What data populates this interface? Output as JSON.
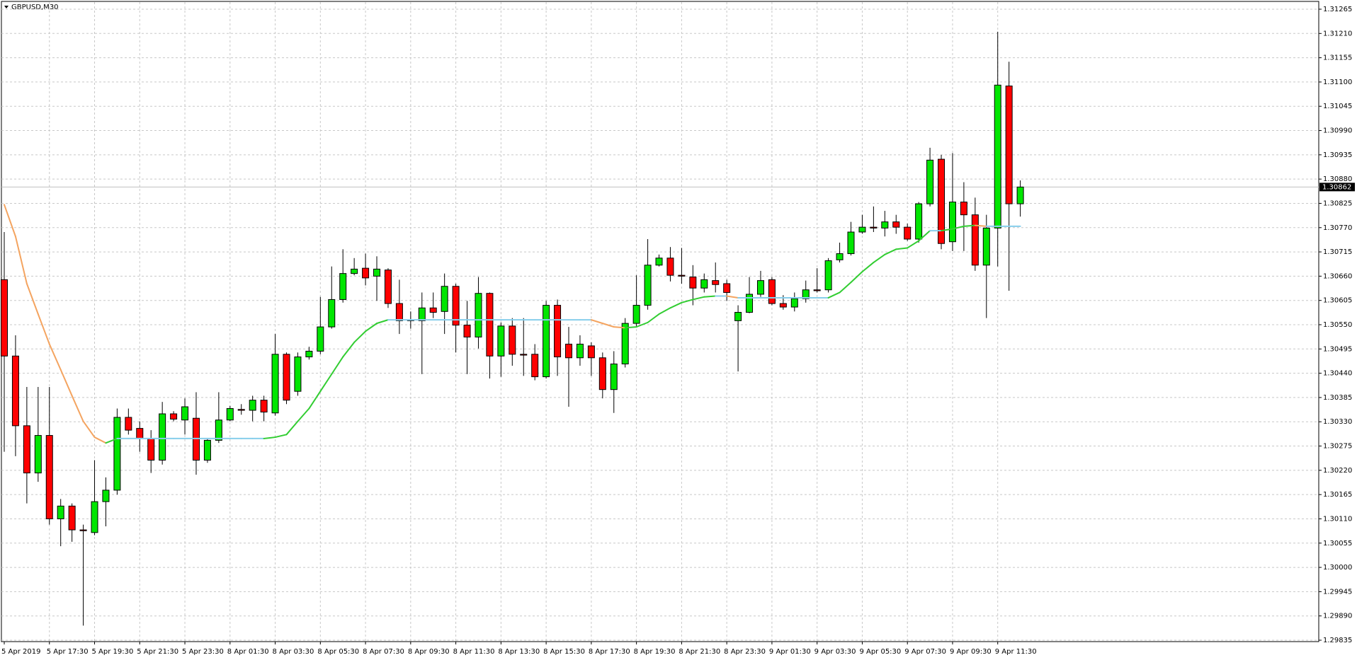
{
  "chart_data": {
    "type": "candlestick",
    "title": "GBPUSD,M30",
    "categories": [
      "5 Apr 2019",
      null,
      null,
      null,
      "5 Apr 17:30",
      null,
      null,
      null,
      "5 Apr 19:30",
      null,
      null,
      null,
      "5 Apr 21:30",
      null,
      null,
      null,
      "5 Apr 23:30",
      null,
      null,
      null,
      "8 Apr 01:30",
      null,
      null,
      null,
      "8 Apr 03:30",
      null,
      null,
      null,
      "8 Apr 05:30",
      null,
      null,
      null,
      "8 Apr 07:30",
      null,
      null,
      null,
      "8 Apr 09:30",
      null,
      null,
      null,
      "8 Apr 11:30",
      null,
      null,
      null,
      "8 Apr 13:30",
      null,
      null,
      null,
      "8 Apr 15:30",
      null,
      null,
      null,
      "8 Apr 17:30",
      null,
      null,
      null,
      "8 Apr 19:30",
      null,
      null,
      null,
      "8 Apr 21:30",
      null,
      null,
      null,
      "8 Apr 23:30",
      null,
      null,
      null,
      "9 Apr 01:30",
      null,
      null,
      null,
      "9 Apr 03:30",
      null,
      null,
      null,
      "9 Apr 05:30",
      null,
      null,
      null,
      "9 Apr 07:30",
      null,
      null,
      null,
      "9 Apr 09:30",
      null,
      null,
      null,
      "9 Apr 11:30",
      null,
      null
    ],
    "open": [
      1.30652,
      1.30479,
      1.30321,
      1.30214,
      1.30299,
      1.3011,
      1.30139,
      1.30085,
      1.30079,
      1.30149,
      1.30175,
      1.3034,
      1.30315,
      1.30292,
      1.30243,
      1.30348,
      1.30334,
      1.30338,
      1.30243,
      1.30288,
      1.30334,
      1.30358,
      1.30356,
      1.30379,
      1.3035,
      1.30483,
      1.30399,
      1.30477,
      1.3049,
      1.30545,
      1.30607,
      1.30666,
      1.30678,
      1.3066,
      1.30674,
      1.30598,
      1.30561,
      1.30559,
      1.30588,
      1.3058,
      1.30637,
      1.30549,
      1.30522,
      1.30621,
      1.30479,
      1.30547,
      1.30483,
      1.30483,
      1.30432,
      1.30594,
      1.30506,
      1.30475,
      1.30502,
      1.30475,
      1.30403,
      1.30461,
      1.30553,
      1.30594,
      1.30685,
      1.30701,
      1.30662,
      1.30658,
      1.30633,
      1.3065,
      1.30643,
      1.30559,
      1.30578,
      1.30619,
      1.30652,
      1.30598,
      1.3059,
      1.30609,
      1.30629,
      1.30629,
      1.30697,
      1.30711,
      1.3076,
      1.30771,
      1.30769,
      1.30783,
      1.30771,
      1.30744,
      1.30824,
      1.30925,
      1.30738,
      1.30828,
      1.30799,
      1.30685,
      1.30769,
      1.31091,
      1.30824
    ],
    "high": [
      1.3076,
      1.30526,
      1.30409,
      1.30409,
      1.30409,
      1.30155,
      1.30145,
      1.30097,
      1.30243,
      1.30204,
      1.3036,
      1.3036,
      1.30331,
      1.30311,
      1.30375,
      1.30354,
      1.30383,
      1.30397,
      1.30292,
      1.30397,
      1.30366,
      1.3037,
      1.30389,
      1.30389,
      1.30529,
      1.30487,
      1.30487,
      1.305,
      1.30613,
      1.30682,
      1.30721,
      1.30701,
      1.30711,
      1.30705,
      1.30678,
      1.30652,
      1.3058,
      1.30623,
      1.30623,
      1.30666,
      1.30643,
      1.30604,
      1.30658,
      1.30623,
      1.30555,
      1.30565,
      1.30565,
      1.30506,
      1.30604,
      1.30607,
      1.30545,
      1.30526,
      1.3051,
      1.30487,
      1.3049,
      1.30565,
      1.30662,
      1.30744,
      1.30709,
      1.30726,
      1.30724,
      1.30685,
      1.30666,
      1.30691,
      1.30652,
      1.30594,
      1.30658,
      1.30672,
      1.30658,
      1.30617,
      1.30623,
      1.3065,
      1.30678,
      1.30701,
      1.30736,
      1.30783,
      1.30799,
      1.30818,
      1.30808,
      1.30799,
      1.30779,
      1.30828,
      1.30951,
      1.30935,
      1.30939,
      1.30873,
      1.30838,
      1.30799,
      1.31214,
      1.31146,
      1.30877
    ],
    "low": [
      1.30262,
      1.30252,
      1.30145,
      1.30194,
      1.30097,
      1.30048,
      1.30058,
      1.29868,
      1.30073,
      1.30093,
      1.30165,
      1.30301,
      1.30262,
      1.30214,
      1.30233,
      1.30331,
      1.30301,
      1.3021,
      1.30237,
      1.30282,
      1.30331,
      1.30346,
      1.30331,
      1.30331,
      1.30344,
      1.3037,
      1.30389,
      1.30471,
      1.30483,
      1.30541,
      1.306,
      1.30662,
      1.30639,
      1.30604,
      1.30588,
      1.30529,
      1.30541,
      1.30438,
      1.30565,
      1.30529,
      1.30487,
      1.30438,
      1.30496,
      1.30428,
      1.30432,
      1.30457,
      1.30434,
      1.30424,
      1.30428,
      1.30434,
      1.30364,
      1.30457,
      1.30434,
      1.30383,
      1.3035,
      1.30453,
      1.30545,
      1.30584,
      1.30682,
      1.30648,
      1.30643,
      1.30594,
      1.30623,
      1.30623,
      1.30604,
      1.30444,
      1.30576,
      1.30613,
      1.30594,
      1.30584,
      1.3058,
      1.306,
      1.30623,
      1.30623,
      1.30691,
      1.30707,
      1.30756,
      1.3076,
      1.3075,
      1.30756,
      1.3074,
      1.30736,
      1.30818,
      1.30721,
      1.30717,
      1.30717,
      1.30672,
      1.30565,
      1.30682,
      1.30627,
      1.30795
    ],
    "close": [
      1.30479,
      1.30321,
      1.30214,
      1.30299,
      1.3011,
      1.30139,
      1.30085,
      1.30083,
      1.30149,
      1.30175,
      1.3034,
      1.30311,
      1.30292,
      1.30243,
      1.30348,
      1.30336,
      1.30364,
      1.30243,
      1.30288,
      1.30334,
      1.3036,
      1.30356,
      1.30379,
      1.30352,
      1.30483,
      1.30379,
      1.30477,
      1.3049,
      1.30545,
      1.30607,
      1.30666,
      1.30676,
      1.30656,
      1.30676,
      1.30598,
      1.30559,
      1.30559,
      1.30588,
      1.30578,
      1.30637,
      1.30549,
      1.30522,
      1.30621,
      1.30479,
      1.30547,
      1.30483,
      1.30481,
      1.30432,
      1.30594,
      1.30477,
      1.30475,
      1.30506,
      1.30475,
      1.30403,
      1.30461,
      1.30553,
      1.30594,
      1.30685,
      1.30701,
      1.30662,
      1.3066,
      1.30633,
      1.30652,
      1.30641,
      1.30623,
      1.30578,
      1.30619,
      1.3065,
      1.30598,
      1.3059,
      1.30609,
      1.30629,
      1.30627,
      1.30695,
      1.30711,
      1.3076,
      1.30771,
      1.30769,
      1.30783,
      1.30771,
      1.30744,
      1.30824,
      1.30923,
      1.30734,
      1.30828,
      1.30799,
      1.30685,
      1.30769,
      1.31093,
      1.30824,
      1.30862
    ],
    "moving_average": [
      1.30822,
      1.3075,
      1.30643,
      1.30574,
      1.30506,
      1.30448,
      1.30389,
      1.30331,
      1.30295,
      1.30282,
      1.30292,
      1.30292,
      1.30292,
      1.30292,
      1.30292,
      1.30292,
      1.30292,
      1.30292,
      1.30292,
      1.30292,
      1.30292,
      1.30292,
      1.30292,
      1.30292,
      1.30295,
      1.30301,
      1.30331,
      1.3036,
      1.30399,
      1.30438,
      1.30477,
      1.3051,
      1.30535,
      1.30553,
      1.30561,
      1.30561,
      1.30561,
      1.30561,
      1.30561,
      1.30561,
      1.30561,
      1.30561,
      1.30561,
      1.30561,
      1.30561,
      1.30561,
      1.30561,
      1.30561,
      1.30561,
      1.30561,
      1.30561,
      1.30561,
      1.30561,
      1.30553,
      1.30545,
      1.30543,
      1.30545,
      1.30555,
      1.30574,
      1.30588,
      1.306,
      1.30607,
      1.30613,
      1.30615,
      1.30615,
      1.30611,
      1.30611,
      1.30611,
      1.30611,
      1.30611,
      1.30611,
      1.30611,
      1.30611,
      1.30611,
      1.30623,
      1.30646,
      1.3067,
      1.30691,
      1.30709,
      1.30721,
      1.30724,
      1.3074,
      1.30763,
      1.30763,
      1.30767,
      1.30773,
      1.30775,
      1.30773,
      1.30773,
      1.30773,
      1.30773
    ],
    "colors": {
      "up": "#00e600",
      "down": "#ff0000",
      "wick": "#000000",
      "ma_up": "#32cd32",
      "ma_down": "#f4a460",
      "ma_flat": "#87ceeb"
    },
    "current_price": 1.30862,
    "ylim": [
      1.29835,
      1.31265
    ],
    "yticks": [
      1.29835,
      {
        "value": 1.2989,
        "label": "1.29890"
      },
      1.29945,
      {
        "value": 1.3,
        "label": "1.30000"
      },
      1.30055,
      {
        "value": 1.3011,
        "label": "1.30110"
      },
      1.30165,
      {
        "value": 1.3022,
        "label": "1.30220"
      },
      1.30275,
      {
        "value": 1.3033,
        "label": "1.30330"
      },
      1.30385,
      {
        "value": 1.3044,
        "label": "1.30440"
      },
      1.30495,
      {
        "value": 1.3055,
        "label": "1.30550"
      },
      1.30605,
      {
        "value": 1.3066,
        "label": "1.30660"
      },
      1.30715,
      {
        "value": 1.3077,
        "label": "1.30770"
      },
      1.30825,
      {
        "value": 1.3088,
        "label": "1.30880"
      },
      1.30935,
      {
        "value": 1.3099,
        "label": "1.30990"
      },
      1.31045,
      {
        "value": 1.311,
        "label": "1.31100"
      },
      1.31155,
      {
        "value": 1.3121,
        "label": "1.31210"
      },
      1.31265
    ],
    "grid": true
  }
}
